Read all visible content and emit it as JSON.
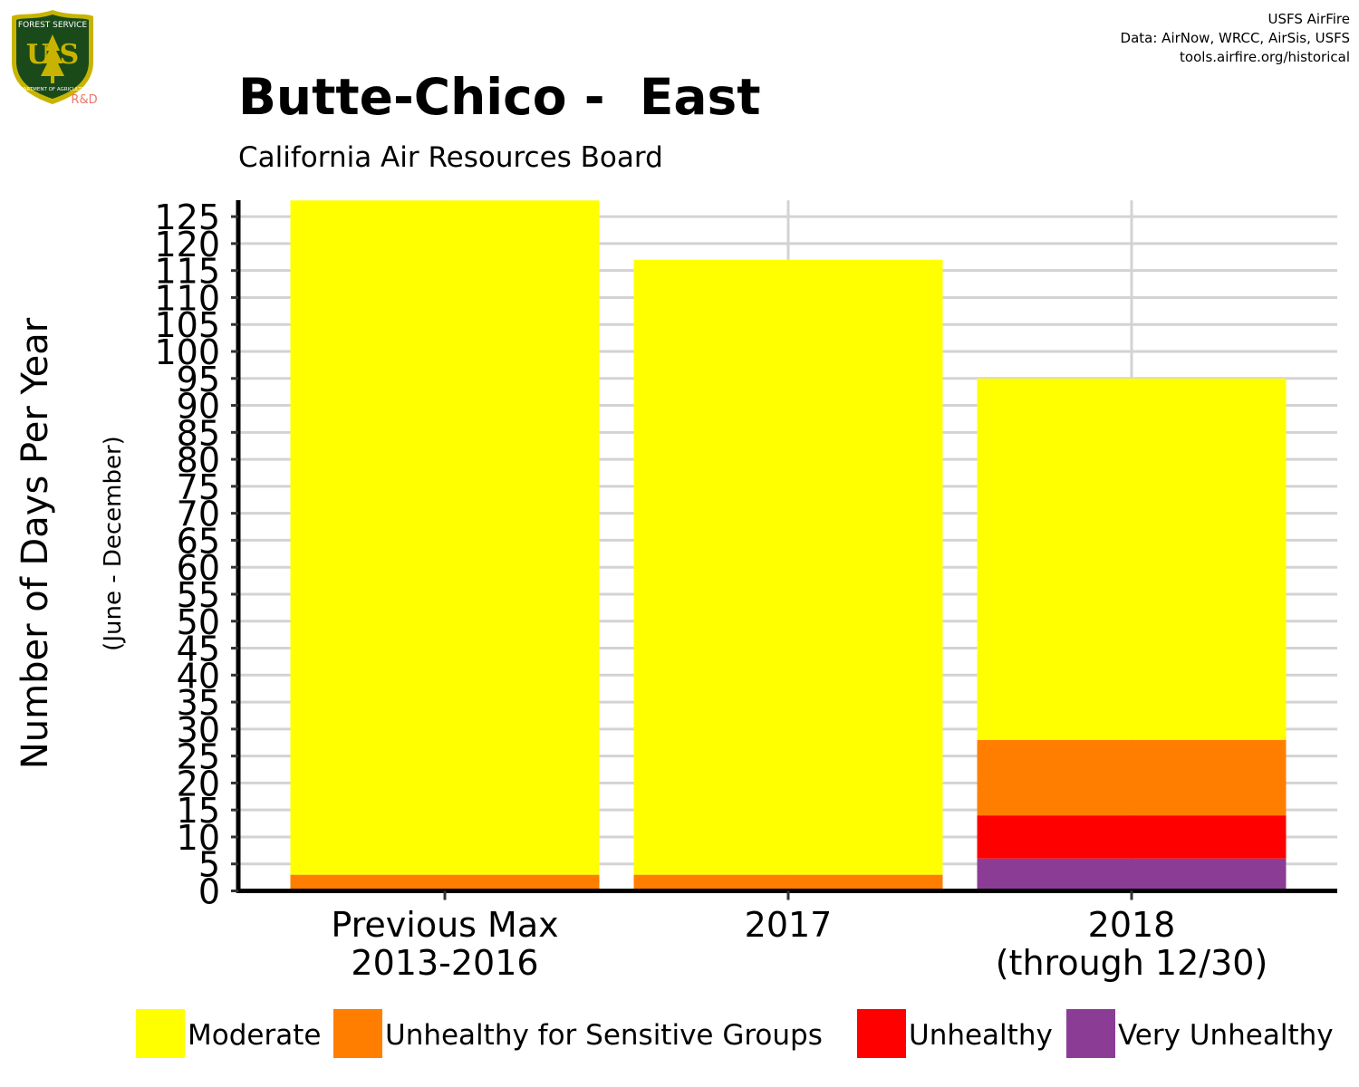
{
  "header": {
    "credit_line1": "USFS AirFire",
    "credit_line2": "Data: AirNow, WRCC, AirSis, USFS",
    "credit_line3": "tools.airfire.org/historical",
    "title": "Butte-Chico -  East",
    "subtitle": "California Air Resources Board"
  },
  "logo": {
    "icon": "usfs-shield-icon",
    "top_text": "FOREST SERVICE",
    "letters": "U S",
    "bottom_text": "DEPARTMENT OF AGRICULTURE",
    "rd_label": "R&D",
    "colors": {
      "shield": "#1a4a1a",
      "border": "#c8b400",
      "rd": "#e8776a"
    }
  },
  "chart_data": {
    "type": "bar",
    "stacked": true,
    "ylabel": "Number of Days Per Year",
    "ylabel_sub": "(June - December)",
    "xlabel": "",
    "ylim": [
      0,
      128
    ],
    "yticks": [
      0,
      5,
      10,
      15,
      20,
      25,
      30,
      35,
      40,
      45,
      50,
      55,
      60,
      65,
      70,
      75,
      80,
      85,
      90,
      95,
      100,
      105,
      110,
      115,
      120,
      125
    ],
    "grid": true,
    "categories": [
      [
        "Previous Max",
        "2013-2016"
      ],
      [
        "2017"
      ],
      [
        "2018",
        "(through 12/30)"
      ]
    ],
    "series": [
      {
        "name": "Very Unhealthy",
        "color": "#8b3d96",
        "values": [
          0,
          0,
          6
        ]
      },
      {
        "name": "Unhealthy",
        "color": "#ff0000",
        "values": [
          0,
          0,
          8
        ]
      },
      {
        "name": "Unhealthy for Sensitive Groups",
        "color": "#ff7e00",
        "values": [
          3,
          3,
          14
        ]
      },
      {
        "name": "Moderate",
        "color": "#ffff00",
        "values": [
          125,
          114,
          67
        ]
      }
    ],
    "legend": {
      "position": "bottom",
      "order": [
        "Moderate",
        "Unhealthy for Sensitive Groups",
        "Unhealthy",
        "Very Unhealthy"
      ]
    }
  }
}
